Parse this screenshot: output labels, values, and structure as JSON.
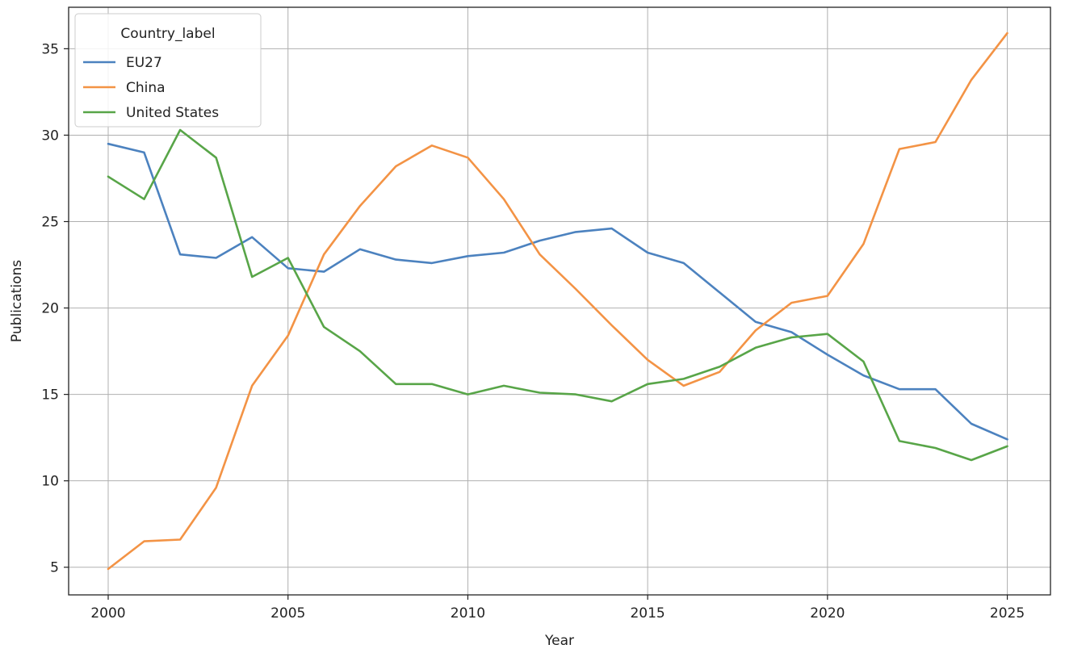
{
  "chart_data": {
    "type": "line",
    "xlabel": "Year",
    "ylabel": "Publications",
    "xlim": [
      1998.9,
      2026.2
    ],
    "ylim": [
      3.4,
      37.4
    ],
    "x_ticks": [
      2000,
      2005,
      2010,
      2015,
      2020,
      2025
    ],
    "y_ticks": [
      5,
      10,
      15,
      20,
      25,
      30,
      35
    ],
    "grid": true,
    "legend": {
      "title": "Country_label",
      "placement": "top-left"
    },
    "x": [
      2000,
      2001,
      2002,
      2003,
      2004,
      2005,
      2006,
      2007,
      2008,
      2009,
      2010,
      2011,
      2012,
      2013,
      2014,
      2015,
      2016,
      2017,
      2018,
      2019,
      2020,
      2021,
      2022,
      2023,
      2024,
      2025
    ],
    "series": [
      {
        "name": "EU27",
        "color": "#4c82bf",
        "values": [
          29.5,
          29.0,
          23.1,
          22.9,
          24.1,
          22.3,
          22.1,
          23.4,
          22.8,
          22.6,
          23.0,
          23.2,
          23.9,
          24.4,
          24.6,
          23.2,
          22.6,
          20.9,
          19.2,
          18.6,
          17.3,
          16.1,
          15.3,
          15.3,
          13.3,
          12.4
        ]
      },
      {
        "name": "China",
        "color": "#f39345",
        "values": [
          4.9,
          6.5,
          6.6,
          9.6,
          15.5,
          18.4,
          23.1,
          25.9,
          28.2,
          29.4,
          28.7,
          26.3,
          23.1,
          21.1,
          19.0,
          17.0,
          15.5,
          16.3,
          18.7,
          20.3,
          20.7,
          23.7,
          29.2,
          29.6,
          33.2,
          35.9
        ]
      },
      {
        "name": "United States",
        "color": "#58a548",
        "values": [
          27.6,
          26.3,
          30.3,
          28.7,
          21.8,
          22.9,
          18.9,
          17.5,
          15.6,
          15.6,
          15.0,
          15.5,
          15.1,
          15.0,
          14.6,
          15.6,
          15.9,
          16.6,
          17.7,
          18.3,
          18.5,
          16.9,
          12.3,
          11.9,
          11.2,
          12.0
        ]
      }
    ]
  }
}
